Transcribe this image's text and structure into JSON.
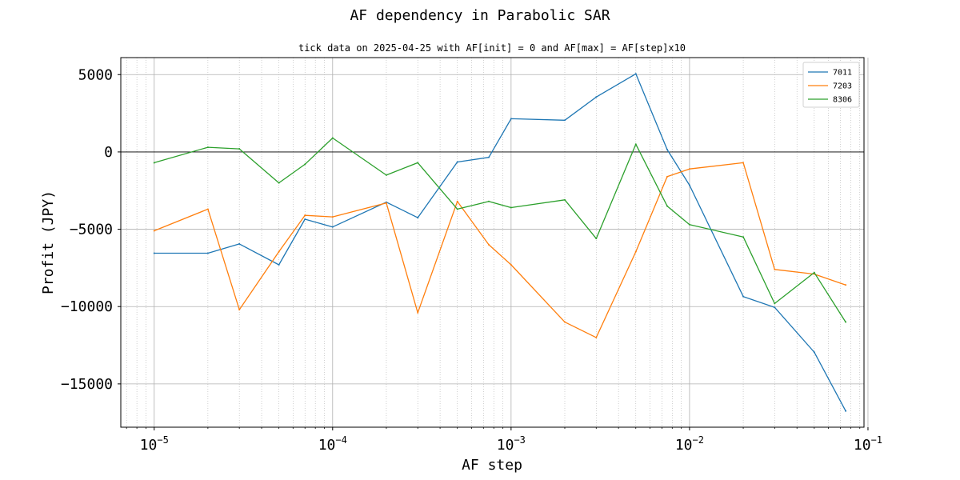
{
  "chart_data": {
    "type": "line",
    "title": "AF dependency in Parabolic SAR",
    "subtitle": "tick data on 2025-04-25 with AF[init] = 0 and AF[max] = AF[step]x10",
    "xlabel": "AF step",
    "ylabel": "Profit (JPY)",
    "xscale": "log",
    "xlim": [
      6.5e-06,
      0.095
    ],
    "ylim": [
      -17800,
      6100
    ],
    "grid": true,
    "legend_position": "top-right",
    "x_ticks": [
      {
        "value": 1e-05,
        "base": "10",
        "exp": "−5"
      },
      {
        "value": 0.0001,
        "base": "10",
        "exp": "−4"
      },
      {
        "value": 0.001,
        "base": "10",
        "exp": "−3"
      },
      {
        "value": 0.01,
        "base": "10",
        "exp": "−2"
      },
      {
        "value": 0.1,
        "base": "10",
        "exp": "−1"
      }
    ],
    "y_ticks": [
      {
        "value": 5000,
        "label": "5000"
      },
      {
        "value": 0,
        "label": "0"
      },
      {
        "value": -5000,
        "label": "−5000"
      },
      {
        "value": -10000,
        "label": "−10000"
      },
      {
        "value": -15000,
        "label": "−15000"
      }
    ],
    "x": [
      1e-05,
      2e-05,
      3e-05,
      5e-05,
      7e-05,
      0.0001,
      0.0002,
      0.0003,
      0.0005,
      0.00075,
      0.001,
      0.002,
      0.003,
      0.005,
      0.0075,
      0.01,
      0.02,
      0.03,
      0.05,
      0.075
    ],
    "series": [
      {
        "name": "7011",
        "color": "#1f77b4",
        "values": [
          -6550,
          -6550,
          -5950,
          -7300,
          -4350,
          -4850,
          -3250,
          -4250,
          -650,
          -350,
          2150,
          2050,
          3550,
          5050,
          150,
          -2150,
          -9350,
          -10050,
          -12950,
          -16750
        ]
      },
      {
        "name": "7203",
        "color": "#ff7f0e",
        "values": [
          -5100,
          -3700,
          -10200,
          -6450,
          -4100,
          -4200,
          -3300,
          -10400,
          -3200,
          -6000,
          -7300,
          -11000,
          -12000,
          -6450,
          -1600,
          -1100,
          -700,
          -7600,
          -7900,
          -8600
        ]
      },
      {
        "name": "8306",
        "color": "#2ca02c",
        "values": [
          -700,
          300,
          200,
          -2000,
          -800,
          900,
          -1500,
          -700,
          -3700,
          -3200,
          -3600,
          -3100,
          -5600,
          500,
          -3500,
          -4700,
          -5500,
          -9800,
          -7800,
          -11000
        ]
      }
    ]
  }
}
